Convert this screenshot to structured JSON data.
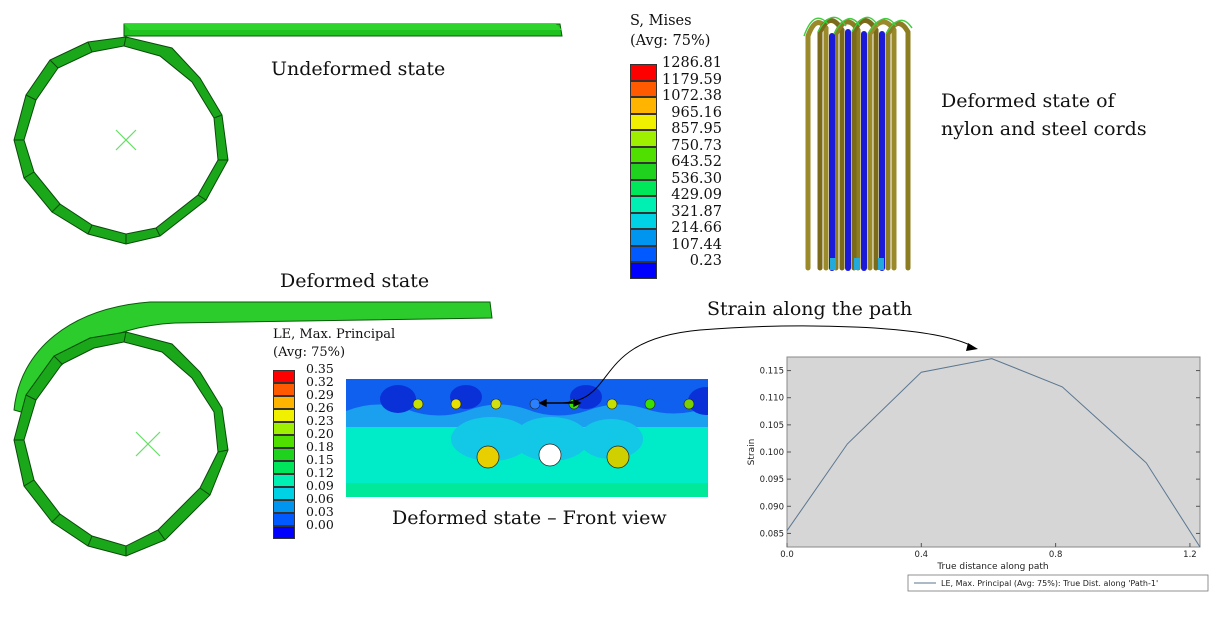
{
  "captions": {
    "undeformed": "Undeformed  state",
    "deformed": "Deformed  state",
    "cords_line1": "Deformed state of",
    "cords_line2": "nylon and steel cords",
    "strain_path": "Strain along the path",
    "front_view": "Deformed  state – Front view"
  },
  "legend_mises": {
    "title_line1": "S, Mises",
    "title_line2": "(Avg: 75%)",
    "values": [
      "1286.81",
      "1179.59",
      "1072.38",
      "965.16",
      "857.95",
      "750.73",
      "643.52",
      "536.30",
      "429.09",
      "321.87",
      "214.66",
      "107.44",
      "0.23"
    ],
    "colors": [
      "#ff0000",
      "#ff5a00",
      "#ffb400",
      "#f0f000",
      "#9ef000",
      "#50e000",
      "#1ed21e",
      "#00e65a",
      "#00f0b4",
      "#00d2e6",
      "#0096f0",
      "#005aff",
      "#0000ff"
    ]
  },
  "legend_le": {
    "title_line1": "LE, Max. Principal",
    "title_line2": "(Avg: 75%)",
    "values": [
      "0.35",
      "0.32",
      "0.29",
      "0.26",
      "0.23",
      "0.20",
      "0.18",
      "0.15",
      "0.12",
      "0.09",
      "0.06",
      "0.03",
      "0.00"
    ],
    "colors": [
      "#ff0000",
      "#ff5a00",
      "#ffb400",
      "#f0f000",
      "#9ef000",
      "#50e000",
      "#1ed21e",
      "#00e65a",
      "#00f0b4",
      "#00d2e6",
      "#0096f0",
      "#005aff",
      "#0000ff"
    ]
  },
  "chart_data": {
    "type": "line",
    "title": "",
    "xlabel": "True distance along path",
    "ylabel": "Strain",
    "xlim": [
      0.0,
      1.23
    ],
    "ylim": [
      0.0825,
      0.1175
    ],
    "xticks": [
      "0.0",
      "0.4",
      "0.8",
      "1.2"
    ],
    "yticks": [
      "0.085",
      "0.090",
      "0.095",
      "0.100",
      "0.105",
      "0.110",
      "0.115"
    ],
    "grid": false,
    "legend_position": "bottom",
    "series": [
      {
        "name": "LE, Max. Principal (Avg: 75%): True Dist. along 'Path-1'",
        "color": "#5a7690",
        "x": [
          0.0,
          0.18,
          0.4,
          0.61,
          0.82,
          1.07,
          1.23
        ],
        "y": [
          0.0855,
          0.1015,
          0.1147,
          0.1172,
          0.112,
          0.098,
          0.082
        ]
      }
    ]
  }
}
